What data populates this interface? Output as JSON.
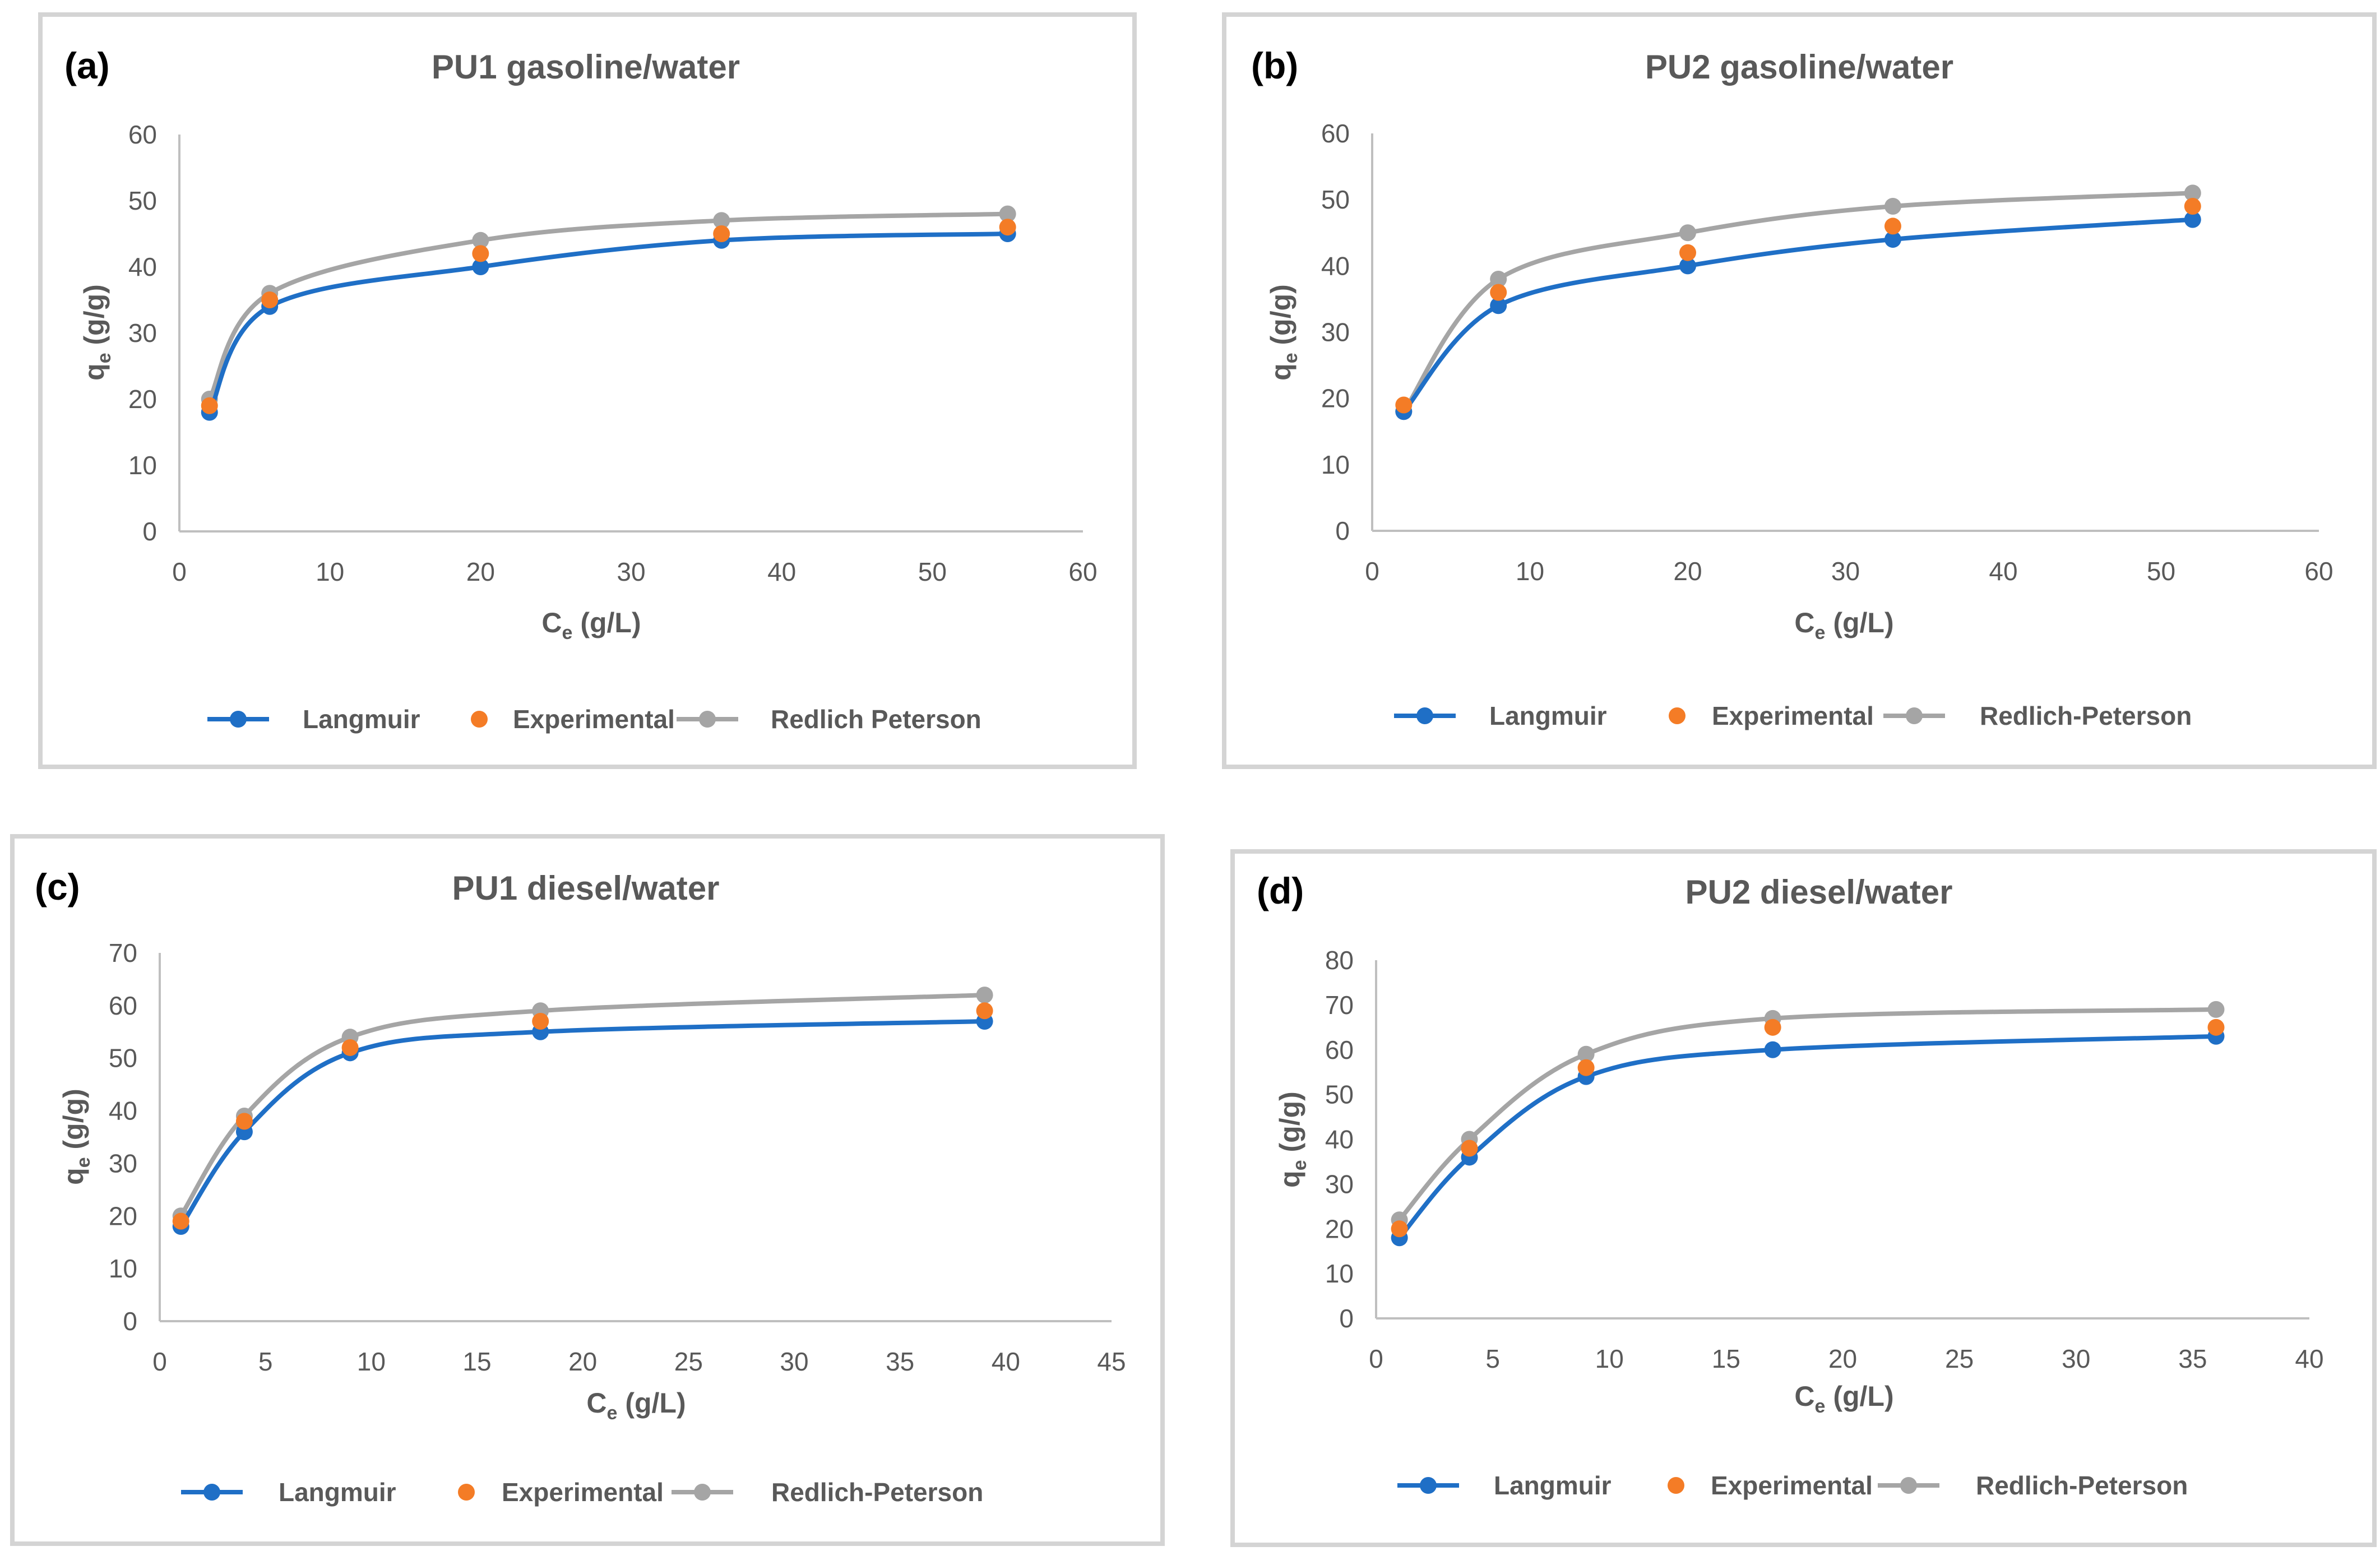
{
  "chart_data": [
    {
      "type": "line",
      "panel_label": "(a)",
      "title": "PU1 gasoline/water",
      "xlabel_main": "C",
      "xlabel_sub": "e",
      "xlabel_unit": " (g/L)",
      "ylabel_main": "q",
      "ylabel_sub": "e",
      "ylabel_unit": " (g/g)",
      "xlim": [
        0,
        60
      ],
      "ylim": [
        0,
        60
      ],
      "xticks": [
        0,
        10,
        20,
        30,
        40,
        50,
        60
      ],
      "yticks": [
        0,
        10,
        20,
        30,
        40,
        50,
        60
      ],
      "series": [
        {
          "name": "Langmuir",
          "color": "#1f6fc6",
          "style": "line-marker",
          "x": [
            2,
            6,
            20,
            36,
            55
          ],
          "y": [
            18,
            34,
            40,
            44,
            45
          ]
        },
        {
          "name": "Experimental",
          "color": "#f47c26",
          "style": "marker",
          "x": [
            2,
            6,
            20,
            36,
            55
          ],
          "y": [
            19,
            35,
            42,
            45,
            46
          ]
        },
        {
          "name": "Redlich Peterson",
          "color": "#a5a5a5",
          "style": "line-marker",
          "x": [
            2,
            6,
            20,
            36,
            55
          ],
          "y": [
            20,
            36,
            44,
            47,
            48
          ]
        }
      ]
    },
    {
      "type": "line",
      "panel_label": "(b)",
      "title": "PU2 gasoline/water",
      "xlabel_main": "C",
      "xlabel_sub": "e",
      "xlabel_unit": " (g/L)",
      "ylabel_main": "q",
      "ylabel_sub": "e",
      "ylabel_unit": " (g/g)",
      "xlim": [
        0,
        60
      ],
      "ylim": [
        0,
        60
      ],
      "xticks": [
        0,
        10,
        20,
        30,
        40,
        50,
        60
      ],
      "yticks": [
        0,
        10,
        20,
        30,
        40,
        50,
        60
      ],
      "series": [
        {
          "name": "Langmuir",
          "color": "#1f6fc6",
          "style": "line-marker",
          "x": [
            2,
            8,
            20,
            33,
            52
          ],
          "y": [
            18,
            34,
            40,
            44,
            47
          ]
        },
        {
          "name": "Experimental",
          "color": "#f47c26",
          "style": "marker",
          "x": [
            2,
            8,
            20,
            33,
            52
          ],
          "y": [
            19,
            36,
            42,
            46,
            49
          ]
        },
        {
          "name": "Redlich-Peterson",
          "color": "#a5a5a5",
          "style": "line-marker",
          "x": [
            2,
            8,
            20,
            33,
            52
          ],
          "y": [
            18,
            38,
            45,
            49,
            51
          ]
        }
      ]
    },
    {
      "type": "line",
      "panel_label": "(c)",
      "title": "PU1 diesel/water",
      "xlabel_main": "C",
      "xlabel_sub": "e",
      "xlabel_unit": " (g/L)",
      "ylabel_main": "q",
      "ylabel_sub": "e",
      "ylabel_unit": " (g/g)",
      "xlim": [
        0,
        45
      ],
      "ylim": [
        0,
        70
      ],
      "xticks": [
        0,
        5,
        10,
        15,
        20,
        25,
        30,
        35,
        40,
        45
      ],
      "yticks": [
        0,
        10,
        20,
        30,
        40,
        50,
        60,
        70
      ],
      "series": [
        {
          "name": "Langmuir",
          "color": "#1f6fc6",
          "style": "line-marker",
          "x": [
            1,
            4,
            9,
            18,
            39
          ],
          "y": [
            18,
            36,
            51,
            55,
            57
          ]
        },
        {
          "name": "Experimental",
          "color": "#f47c26",
          "style": "marker",
          "x": [
            1,
            4,
            9,
            18,
            39
          ],
          "y": [
            19,
            38,
            52,
            57,
            59
          ]
        },
        {
          "name": "Redlich-Peterson",
          "color": "#a5a5a5",
          "style": "line-marker",
          "x": [
            1,
            4,
            9,
            18,
            39
          ],
          "y": [
            20,
            39,
            54,
            59,
            62
          ]
        }
      ]
    },
    {
      "type": "line",
      "panel_label": "(d)",
      "title": "PU2 diesel/water",
      "xlabel_main": "C",
      "xlabel_sub": "e",
      "xlabel_unit": " (g/L)",
      "ylabel_main": "q",
      "ylabel_sub": "e",
      "ylabel_unit": " (g/g)",
      "xlim": [
        0,
        40
      ],
      "ylim": [
        0,
        80
      ],
      "xticks": [
        0,
        5,
        10,
        15,
        20,
        25,
        30,
        35,
        40
      ],
      "yticks": [
        0,
        10,
        20,
        30,
        40,
        50,
        60,
        70,
        80
      ],
      "series": [
        {
          "name": "Langmuir",
          "color": "#1f6fc6",
          "style": "line-marker",
          "x": [
            1,
            4,
            9,
            17,
            36
          ],
          "y": [
            18,
            36,
            54,
            60,
            63
          ]
        },
        {
          "name": "Experimental",
          "color": "#f47c26",
          "style": "marker",
          "x": [
            1,
            4,
            9,
            17,
            36
          ],
          "y": [
            20,
            38,
            56,
            65,
            65
          ]
        },
        {
          "name": "Redlich-Peterson",
          "color": "#a5a5a5",
          "style": "line-marker",
          "x": [
            1,
            4,
            9,
            17,
            36
          ],
          "y": [
            22,
            40,
            59,
            67,
            69
          ]
        }
      ]
    }
  ]
}
